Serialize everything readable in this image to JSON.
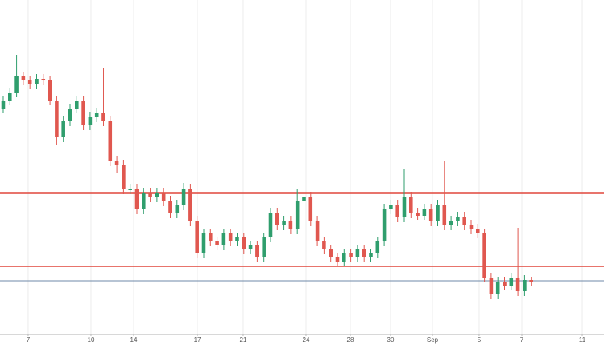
{
  "chart_data": {
    "type": "candlestick",
    "xlim": [
      -0.48,
      89.88
    ],
    "ylim": [
      0,
      415
    ],
    "xticks": [
      {
        "value": 3.73,
        "label": "7"
      },
      {
        "value": 13.13,
        "label": "10"
      },
      {
        "value": 19.52,
        "label": "14"
      },
      {
        "value": 29.04,
        "label": "17"
      },
      {
        "value": 35.9,
        "label": "21"
      },
      {
        "value": 45.3,
        "label": "24"
      },
      {
        "value": 51.93,
        "label": "28"
      },
      {
        "value": 57.95,
        "label": "30"
      },
      {
        "value": 64.22,
        "label": "Sep"
      },
      {
        "value": 71.2,
        "label": "5"
      },
      {
        "value": 77.59,
        "label": "7"
      },
      {
        "value": 86.63,
        "label": "11"
      }
    ],
    "grid": true,
    "up_color": "#2f9e6d",
    "down_color": "#e0574f",
    "hlines": [
      {
        "value": 175,
        "color": "#e0463c"
      },
      {
        "value": 84,
        "color": "#e0463c"
      },
      {
        "value": 66,
        "color": "#6f89a8"
      }
    ],
    "open": [
      280,
      290,
      300,
      320,
      315,
      310,
      317,
      315,
      290,
      245,
      265,
      280,
      290,
      260,
      270,
      275,
      265,
      215,
      210,
      180,
      180,
      155,
      175,
      170,
      175,
      165,
      150,
      160,
      180,
      140,
      100,
      125,
      115,
      110,
      125,
      115,
      120,
      105,
      110,
      95,
      120,
      150,
      135,
      140,
      130,
      165,
      170,
      140,
      115,
      105,
      95,
      90,
      100,
      95,
      105,
      95,
      100,
      115,
      155,
      160,
      145,
      170,
      150,
      147,
      155,
      140,
      160,
      135,
      140,
      145,
      135,
      130,
      125,
      70,
      50,
      65,
      60,
      70,
      53,
      67
    ],
    "high": [
      296,
      306,
      347,
      326,
      321,
      323,
      323,
      321,
      296,
      271,
      286,
      296,
      296,
      276,
      281,
      330,
      271,
      221,
      216,
      186,
      186,
      181,
      181,
      181,
      181,
      171,
      166,
      188,
      186,
      146,
      131,
      131,
      121,
      131,
      131,
      126,
      126,
      116,
      116,
      126,
      156,
      156,
      146,
      146,
      180,
      176,
      176,
      146,
      121,
      111,
      101,
      106,
      106,
      111,
      111,
      106,
      121,
      161,
      166,
      166,
      205,
      176,
      156,
      161,
      161,
      166,
      215,
      146,
      151,
      151,
      141,
      136,
      131,
      76,
      71,
      71,
      76,
      132,
      73,
      71
    ],
    "low": [
      274,
      284,
      294,
      309,
      304,
      304,
      309,
      284,
      235,
      239,
      259,
      274,
      254,
      254,
      264,
      259,
      209,
      200,
      174,
      174,
      149,
      149,
      164,
      164,
      159,
      144,
      144,
      154,
      134,
      94,
      94,
      109,
      104,
      104,
      109,
      109,
      99,
      99,
      89,
      89,
      114,
      129,
      129,
      124,
      124,
      159,
      134,
      109,
      99,
      89,
      84,
      84,
      89,
      89,
      89,
      89,
      94,
      109,
      149,
      139,
      139,
      144,
      141,
      141,
      134,
      134,
      129,
      129,
      134,
      129,
      124,
      119,
      64,
      44,
      44,
      54,
      54,
      47,
      47,
      59
    ],
    "close": [
      290,
      300,
      320,
      315,
      310,
      317,
      315,
      290,
      245,
      265,
      280,
      290,
      260,
      270,
      275,
      265,
      215,
      210,
      180,
      180,
      155,
      175,
      170,
      175,
      165,
      150,
      160,
      180,
      140,
      100,
      125,
      115,
      110,
      125,
      115,
      120,
      105,
      110,
      95,
      120,
      150,
      135,
      140,
      130,
      165,
      170,
      140,
      115,
      105,
      95,
      90,
      100,
      95,
      105,
      95,
      100,
      115,
      155,
      160,
      145,
      170,
      150,
      147,
      155,
      140,
      160,
      135,
      140,
      145,
      135,
      130,
      125,
      70,
      50,
      65,
      60,
      70,
      53,
      67,
      65
    ]
  }
}
